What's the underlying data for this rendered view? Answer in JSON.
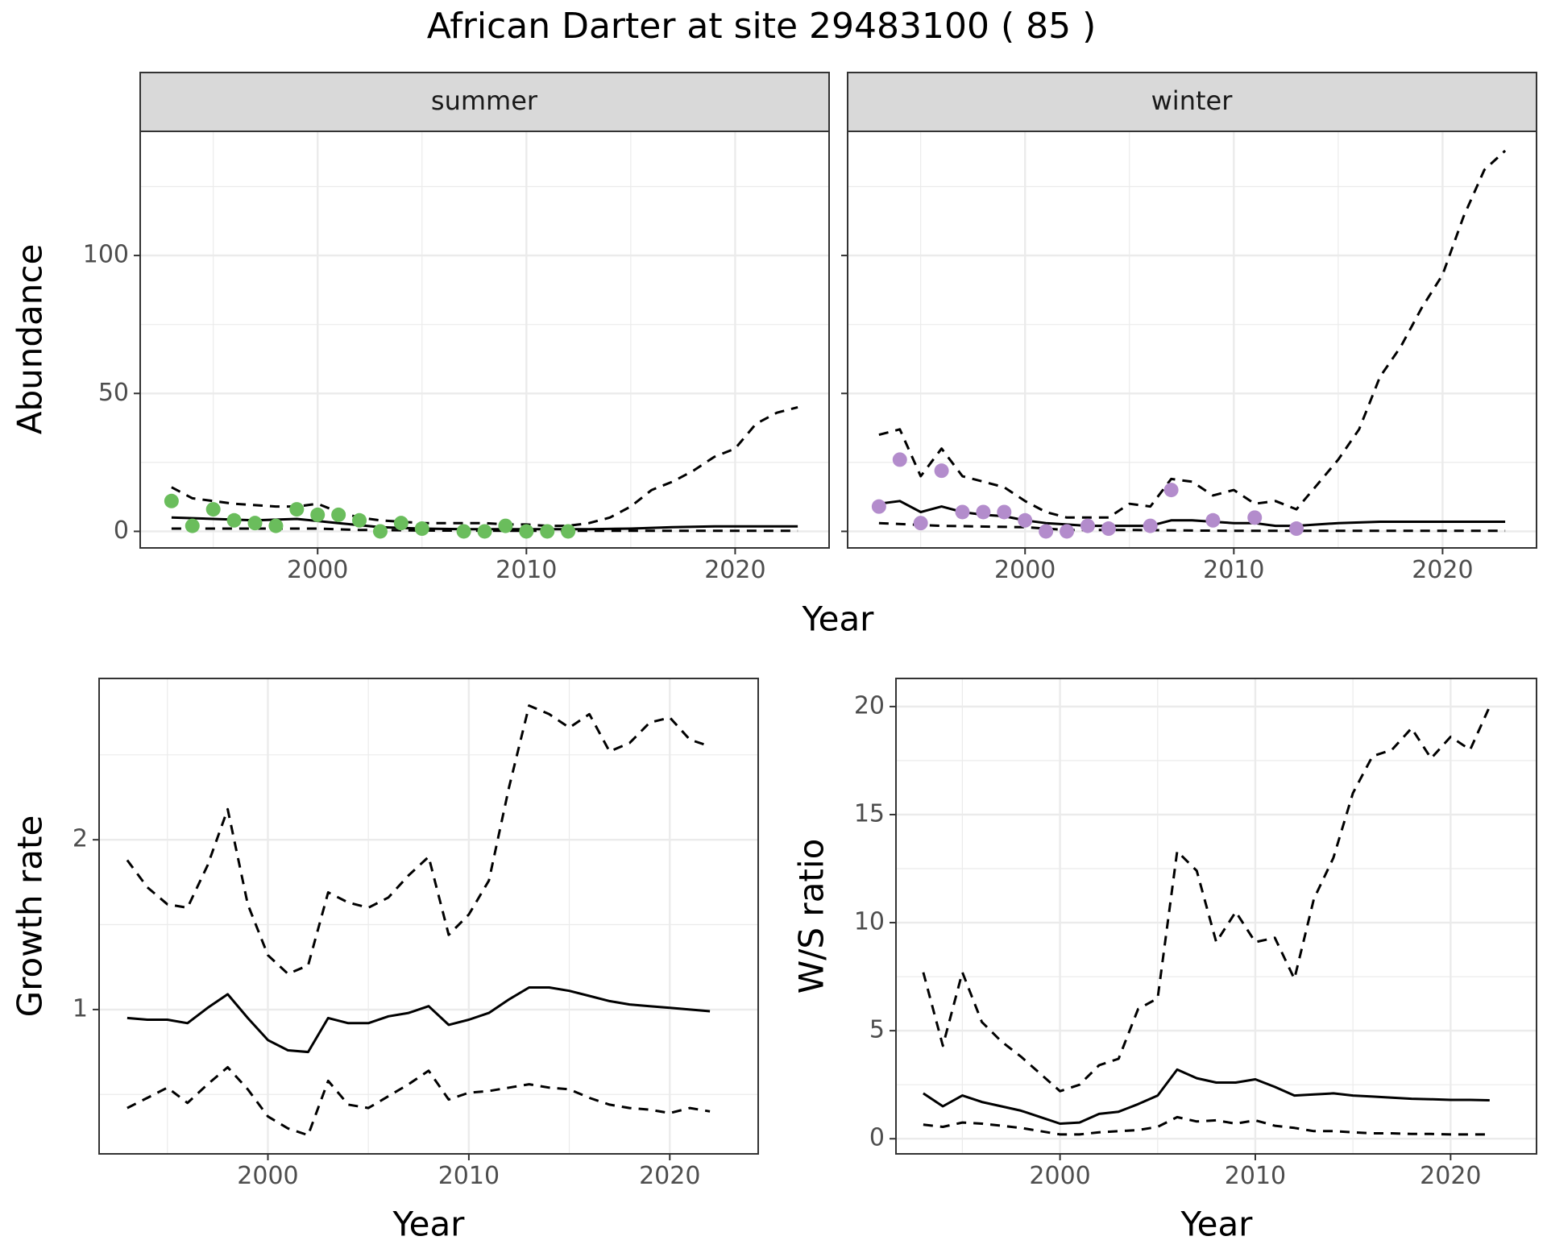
{
  "figure": {
    "title": "African Darter at site 29483100 ( 85 )",
    "colors": {
      "summer_points": "#6abd5c",
      "winter_points": "#b38ccc",
      "lines": "#000000",
      "strip_fill": "#d9d9d9",
      "grid": "#ebebeb"
    }
  },
  "chart_data": [
    {
      "type": "line",
      "panel": "summer",
      "strip_label": "summer",
      "xlabel": "Year",
      "ylabel": "Abundance",
      "grid": true,
      "xlim": [
        1991.5,
        2024.5
      ],
      "ylim": [
        -6,
        145
      ],
      "xticks": [
        2000,
        2010,
        2020
      ],
      "yticks": [
        0,
        50,
        100
      ],
      "series": [
        {
          "role": "estimate",
          "style": "solid",
          "x": [
            1993,
            1995,
            1997,
            1999,
            2001,
            2003,
            2005,
            2007,
            2009,
            2011,
            2013,
            2015,
            2017,
            2019,
            2021,
            2023
          ],
          "values": [
            5,
            4.5,
            4,
            4.5,
            3,
            1.5,
            1,
            0.8,
            0.8,
            0.8,
            0.8,
            1,
            1.5,
            1.8,
            1.8,
            1.8
          ]
        },
        {
          "role": "upper",
          "style": "dashed",
          "x": [
            1993,
            1994,
            1995,
            1996,
            1997,
            1998,
            1999,
            2000,
            2001,
            2002,
            2003,
            2004,
            2005,
            2006,
            2007,
            2008,
            2009,
            2010,
            2011,
            2012,
            2013,
            2014,
            2015,
            2016,
            2017,
            2018,
            2019,
            2020,
            2021,
            2022,
            2023
          ],
          "values": [
            16,
            12,
            11,
            10,
            9.5,
            9,
            9,
            10,
            7,
            5,
            4,
            3.5,
            3,
            3,
            3,
            3,
            2.5,
            2.5,
            2,
            2,
            3,
            5,
            9,
            15,
            18,
            22,
            27,
            30,
            39,
            43,
            45
          ]
        },
        {
          "role": "lower",
          "style": "dashed",
          "x": [
            1993,
            1997,
            2000,
            2002,
            2005,
            2010,
            2015,
            2020,
            2023
          ],
          "values": [
            1,
            1,
            1,
            0.5,
            0.3,
            0.2,
            0.2,
            0.2,
            0.2
          ]
        },
        {
          "role": "observed",
          "style": "points",
          "x": [
            1993,
            1994,
            1995,
            1996,
            1997,
            1998,
            1999,
            2000,
            2001,
            2002,
            2003,
            2004,
            2005,
            2007,
            2008,
            2009,
            2010,
            2011,
            2012
          ],
          "values": [
            11,
            2,
            8,
            4,
            3,
            2,
            8,
            6,
            6,
            4,
            0,
            3,
            1,
            0,
            0,
            2,
            0,
            0,
            0
          ]
        }
      ]
    },
    {
      "type": "line",
      "panel": "winter",
      "strip_label": "winter",
      "xlabel": "Year",
      "grid": true,
      "xlim": [
        1991.5,
        2024.5
      ],
      "ylim": [
        -6,
        145
      ],
      "xticks": [
        2000,
        2010,
        2020
      ],
      "yticks": [
        0,
        50,
        100
      ],
      "series": [
        {
          "role": "estimate",
          "style": "solid",
          "x": [
            1993,
            1994,
            1995,
            1996,
            1997,
            1998,
            1999,
            2000,
            2001,
            2002,
            2003,
            2004,
            2005,
            2006,
            2007,
            2008,
            2009,
            2010,
            2011,
            2012,
            2013,
            2015,
            2017,
            2019,
            2021,
            2023
          ],
          "values": [
            10,
            11,
            7,
            9,
            7,
            6,
            5.5,
            4,
            3,
            2.5,
            2,
            2,
            2,
            2,
            4,
            4,
            3.5,
            3,
            3,
            2,
            2,
            3,
            3.5,
            3.5,
            3.5,
            3.5
          ]
        },
        {
          "role": "upper",
          "style": "dashed",
          "x": [
            1993,
            1994,
            1995,
            1996,
            1997,
            1998,
            1999,
            2000,
            2001,
            2002,
            2003,
            2004,
            2005,
            2006,
            2007,
            2008,
            2009,
            2010,
            2011,
            2012,
            2013,
            2014,
            2015,
            2016,
            2017,
            2018,
            2019,
            2020,
            2021,
            2022,
            2023
          ],
          "values": [
            35,
            37,
            20,
            30,
            20,
            18,
            16,
            11,
            7,
            5,
            5,
            5,
            10,
            9,
            19,
            18,
            13,
            15,
            10,
            11,
            8,
            17,
            26,
            37,
            56,
            67,
            81,
            93,
            114,
            131,
            138
          ]
        },
        {
          "role": "lower",
          "style": "dashed",
          "x": [
            1993,
            1996,
            2000,
            2002,
            2005,
            2010,
            2015,
            2020,
            2023
          ],
          "values": [
            3,
            2,
            1.5,
            0.5,
            0.5,
            0.2,
            0.2,
            0.2,
            0.2
          ]
        },
        {
          "role": "observed",
          "style": "points",
          "x": [
            1993,
            1994,
            1995,
            1996,
            1997,
            1998,
            1999,
            2000,
            2001,
            2002,
            2003,
            2004,
            2006,
            2007,
            2009,
            2011,
            2013
          ],
          "values": [
            9,
            26,
            3,
            22,
            7,
            7,
            7,
            4,
            0,
            0,
            2,
            1,
            2,
            15,
            4,
            5,
            1
          ]
        }
      ]
    },
    {
      "type": "line",
      "panel": "growth",
      "xlabel": "Year",
      "ylabel": "Growth rate",
      "grid": true,
      "xlim": [
        1991.6,
        2024.4
      ],
      "ylim": [
        0.15,
        2.95
      ],
      "xticks": [
        2000,
        2010,
        2020
      ],
      "yticks": [
        1,
        2
      ],
      "series": [
        {
          "role": "estimate",
          "style": "solid",
          "x": [
            1993,
            1994,
            1995,
            1996,
            1997,
            1998,
            1999,
            2000,
            2001,
            2002,
            2003,
            2004,
            2005,
            2006,
            2007,
            2008,
            2009,
            2010,
            2011,
            2012,
            2013,
            2014,
            2015,
            2016,
            2017,
            2018,
            2019,
            2020,
            2021,
            2022
          ],
          "values": [
            0.95,
            0.94,
            0.94,
            0.92,
            1.01,
            1.09,
            0.95,
            0.82,
            0.76,
            0.75,
            0.95,
            0.92,
            0.92,
            0.96,
            0.98,
            1.02,
            0.91,
            0.94,
            0.98,
            1.06,
            1.13,
            1.13,
            1.11,
            1.08,
            1.05,
            1.03,
            1.02,
            1.01,
            1.0,
            0.99
          ]
        },
        {
          "role": "upper",
          "style": "dashed",
          "x": [
            1993,
            1994,
            1995,
            1996,
            1997,
            1998,
            1999,
            2000,
            2001,
            2002,
            2003,
            2004,
            2005,
            2006,
            2007,
            2008,
            2009,
            2010,
            2011,
            2012,
            2013,
            2014,
            2015,
            2016,
            2017,
            2018,
            2019,
            2020,
            2021,
            2022
          ],
          "values": [
            1.88,
            1.72,
            1.62,
            1.6,
            1.85,
            2.18,
            1.62,
            1.32,
            1.21,
            1.26,
            1.69,
            1.63,
            1.6,
            1.66,
            1.79,
            1.9,
            1.44,
            1.56,
            1.76,
            2.31,
            2.79,
            2.74,
            2.66,
            2.74,
            2.52,
            2.57,
            2.69,
            2.72,
            2.59,
            2.55
          ]
        },
        {
          "role": "lower",
          "style": "dashed",
          "x": [
            1993,
            1994,
            1995,
            1996,
            1997,
            1998,
            1999,
            2000,
            2001,
            2002,
            2003,
            2004,
            2005,
            2006,
            2007,
            2008,
            2009,
            2010,
            2011,
            2012,
            2013,
            2014,
            2015,
            2016,
            2017,
            2018,
            2019,
            2020,
            2021,
            2022
          ],
          "values": [
            0.42,
            0.48,
            0.54,
            0.45,
            0.56,
            0.66,
            0.53,
            0.37,
            0.3,
            0.26,
            0.58,
            0.44,
            0.42,
            0.49,
            0.56,
            0.64,
            0.47,
            0.51,
            0.52,
            0.54,
            0.56,
            0.54,
            0.53,
            0.48,
            0.44,
            0.42,
            0.41,
            0.39,
            0.42,
            0.4
          ]
        }
      ]
    },
    {
      "type": "line",
      "panel": "ws_ratio",
      "xlabel": "Year",
      "ylabel": "W/S ratio",
      "grid": true,
      "xlim": [
        1991.6,
        2024.4
      ],
      "ylim": [
        -0.7,
        21.3
      ],
      "xticks": [
        2000,
        2010,
        2020
      ],
      "yticks": [
        0,
        5,
        10,
        15,
        20
      ],
      "series": [
        {
          "role": "estimate",
          "style": "solid",
          "x": [
            1993,
            1994,
            1995,
            1996,
            1997,
            1998,
            1999,
            2000,
            2001,
            2002,
            2003,
            2004,
            2005,
            2006,
            2007,
            2008,
            2009,
            2010,
            2011,
            2012,
            2013,
            2014,
            2015,
            2016,
            2017,
            2018,
            2019,
            2020,
            2021,
            2022
          ],
          "values": [
            2.1,
            1.5,
            2.0,
            1.7,
            1.5,
            1.3,
            1.0,
            0.7,
            0.75,
            1.15,
            1.25,
            1.6,
            2.0,
            3.2,
            2.8,
            2.6,
            2.6,
            2.75,
            2.4,
            2.0,
            2.05,
            2.1,
            2.0,
            1.95,
            1.9,
            1.85,
            1.83,
            1.8,
            1.8,
            1.78
          ]
        },
        {
          "role": "upper",
          "style": "dashed",
          "x": [
            1993,
            1994,
            1995,
            1996,
            1997,
            1998,
            1999,
            2000,
            2001,
            2002,
            2003,
            2004,
            2005,
            2006,
            2007,
            2008,
            2009,
            2010,
            2011,
            2012,
            2013,
            2014,
            2015,
            2016,
            2017,
            2018,
            2019,
            2020,
            2021,
            2022
          ],
          "values": [
            7.7,
            4.3,
            7.7,
            5.4,
            4.5,
            3.8,
            3.0,
            2.2,
            2.5,
            3.4,
            3.7,
            6.0,
            6.5,
            13.3,
            12.4,
            9.1,
            10.5,
            9.1,
            9.3,
            7.4,
            11.1,
            13.0,
            16.0,
            17.7,
            18.0,
            19.0,
            17.6,
            18.6,
            18.0,
            20.0
          ]
        },
        {
          "role": "lower",
          "style": "dashed",
          "x": [
            1993,
            1994,
            1995,
            1996,
            1997,
            1998,
            1999,
            2000,
            2001,
            2002,
            2003,
            2004,
            2005,
            2006,
            2007,
            2008,
            2009,
            2010,
            2011,
            2012,
            2013,
            2014,
            2015,
            2016,
            2017,
            2018,
            2019,
            2020,
            2021,
            2022
          ],
          "values": [
            0.65,
            0.55,
            0.75,
            0.7,
            0.6,
            0.5,
            0.35,
            0.2,
            0.2,
            0.3,
            0.35,
            0.4,
            0.55,
            1.0,
            0.8,
            0.85,
            0.7,
            0.85,
            0.6,
            0.5,
            0.35,
            0.35,
            0.3,
            0.25,
            0.25,
            0.22,
            0.22,
            0.2,
            0.2,
            0.2
          ]
        }
      ]
    }
  ]
}
